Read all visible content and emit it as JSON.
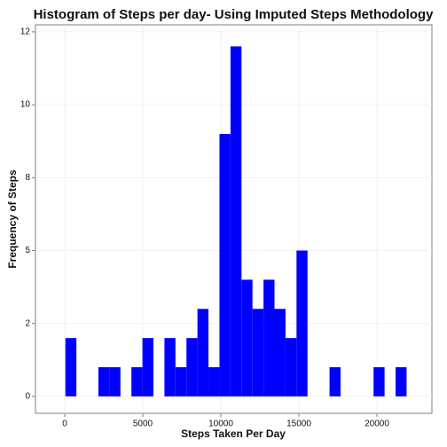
{
  "chart_data": {
    "type": "histogram",
    "title": "Histogram of Steps per day- Using Imputed Steps Methodology",
    "x_label": "Steps Taken Per Day",
    "y_label": "Frequency of Steps",
    "bins": [
      41,
      746,
      1451,
      2156,
      2861,
      3566,
      4271,
      4976,
      5681,
      6386,
      7091,
      7796,
      8501,
      9206,
      9911,
      10616,
      11321,
      12026,
      12731,
      13436,
      14141,
      14846,
      15551,
      16256,
      16961,
      17666,
      18371,
      19076,
      19781,
      20486,
      21191,
      21896
    ],
    "values": [
      2,
      0,
      0,
      1,
      1,
      0,
      1,
      2,
      0,
      2,
      1,
      2,
      3,
      1,
      9,
      12,
      4,
      3,
      4,
      3,
      2,
      5,
      0,
      0,
      1,
      0,
      0,
      0,
      1,
      0,
      1
    ],
    "color": "#0000ff",
    "xlim": [
      -1875,
      23520
    ],
    "ylim": [
      -0.58,
      12.74
    ],
    "xticks": [
      0,
      5000,
      10000,
      15000,
      20000
    ],
    "yticks": [
      0,
      {
        "value": 2.5,
        "label": "2"
      },
      5,
      {
        "value": 7.5,
        "label": "8"
      },
      10,
      {
        "value": 12.5,
        "label": "12"
      }
    ],
    "grid": true
  }
}
